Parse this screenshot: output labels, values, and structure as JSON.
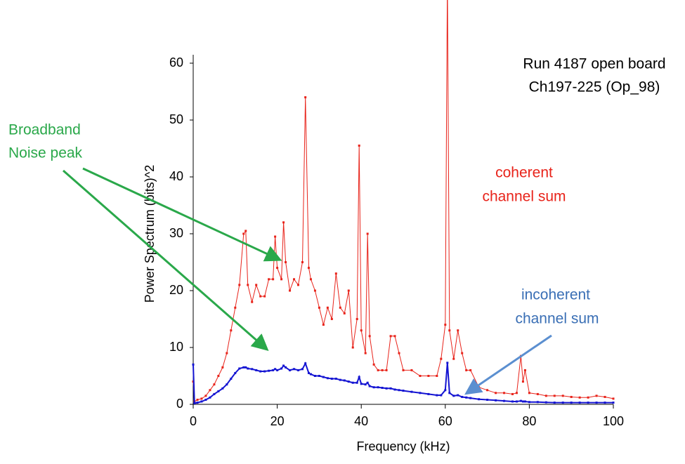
{
  "chart_data": {
    "type": "line",
    "xlabel": "Frequency (kHz)",
    "ylabel": "Power Spectrum (bits)^2",
    "annotations": {
      "run": [
        "Run 4187 open board",
        "Ch197-225  (Op_98)"
      ],
      "coherent": [
        "coherent",
        "channel sum"
      ],
      "incoherent": [
        "incoherent",
        "channel sum"
      ],
      "broadband": [
        "Broadband",
        "Noise peak"
      ]
    },
    "x": [
      0,
      0.3,
      1,
      2,
      3,
      4,
      5,
      6,
      7,
      8,
      9,
      10,
      11,
      12,
      12.5,
      13,
      14,
      15,
      16,
      17,
      18,
      19,
      19.5,
      20,
      21,
      21.5,
      22,
      23,
      24,
      25,
      26,
      26.7,
      27.5,
      28,
      29,
      30,
      31,
      32,
      33,
      34,
      35,
      36,
      37,
      38,
      39,
      39.5,
      40,
      41,
      41.5,
      42,
      43,
      44,
      45,
      46,
      47,
      48,
      49,
      50,
      52,
      54,
      56,
      58,
      59,
      60,
      60.5,
      61,
      62,
      63,
      64,
      65,
      66,
      68,
      70,
      72,
      74,
      76,
      77,
      78,
      78.5,
      79,
      80,
      82,
      84,
      86,
      88,
      90,
      92,
      94,
      96,
      98,
      100
    ],
    "series": [
      {
        "name": "coherent channel sum",
        "color": "#e8231a",
        "values": [
          4,
          0.5,
          0.8,
          1,
          1.5,
          2.5,
          3.5,
          5,
          6.5,
          9,
          13,
          17,
          21,
          30,
          30.5,
          21,
          18,
          21,
          19,
          19,
          22,
          22,
          29.5,
          24,
          22,
          32,
          25,
          20,
          22,
          21,
          25,
          54,
          24,
          22,
          20,
          17,
          14,
          17,
          15,
          23,
          17,
          16,
          20,
          10,
          15,
          45.5,
          13,
          9,
          30,
          12,
          7,
          6,
          6,
          6,
          12,
          12,
          9,
          6,
          6,
          5,
          5,
          5,
          8,
          14,
          75,
          13,
          8,
          13,
          9,
          6,
          6,
          3,
          2.5,
          2,
          2,
          1.8,
          2,
          8.5,
          4,
          6,
          2,
          1.8,
          1.5,
          1.5,
          1.5,
          1.3,
          1.2,
          1.2,
          1.5,
          1.3,
          1.0
        ]
      },
      {
        "name": "incoherent channel sum",
        "color": "#1414d2",
        "values": [
          7,
          0.2,
          0.3,
          0.5,
          0.8,
          1.2,
          1.8,
          2.3,
          2.8,
          3.5,
          4.5,
          5.5,
          6.3,
          6.5,
          6.5,
          6.3,
          6.2,
          6,
          5.8,
          5.8,
          5.9,
          6,
          6.2,
          6,
          6.3,
          6.8,
          6.5,
          6,
          6.2,
          6,
          6.2,
          7.2,
          5.5,
          5.3,
          5,
          5,
          4.8,
          4.6,
          4.5,
          4.5,
          4.3,
          4.2,
          4,
          3.8,
          3.8,
          4.8,
          3.6,
          3.5,
          3.8,
          3.2,
          3,
          3,
          2.9,
          2.8,
          2.8,
          2.6,
          2.5,
          2.4,
          2.2,
          2,
          1.8,
          1.6,
          1.6,
          2.5,
          7.3,
          2,
          1.5,
          1.6,
          1.3,
          1.2,
          1.1,
          0.9,
          0.8,
          0.7,
          0.6,
          0.5,
          0.5,
          0.6,
          0.5,
          0.5,
          0.4,
          0.4,
          0.35,
          0.3,
          0.3,
          0.3,
          0.3,
          0.3,
          0.3,
          0.3,
          0.3
        ]
      }
    ],
    "xlim": [
      0,
      100
    ],
    "xticks": [
      0,
      20,
      40,
      60,
      80,
      100
    ],
    "ylim": [
      0,
      60
    ],
    "yticks": [
      0,
      10,
      20,
      30,
      40,
      50,
      60
    ],
    "grid": false
  }
}
